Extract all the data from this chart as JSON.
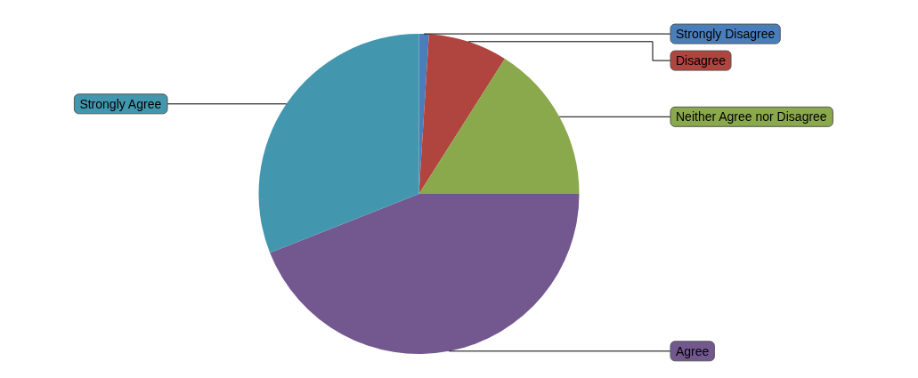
{
  "chart_data": {
    "type": "pie",
    "categories": [
      "Strongly Disagree",
      "Disagree",
      "Neither Agree nor Disagree",
      "Agree",
      "Strongly Agree"
    ],
    "values": [
      1,
      8,
      16,
      44,
      31
    ],
    "colors": [
      "#4a7ebb",
      "#b0443f",
      "#8aa84c",
      "#735890",
      "#4297af"
    ],
    "legend": false
  }
}
